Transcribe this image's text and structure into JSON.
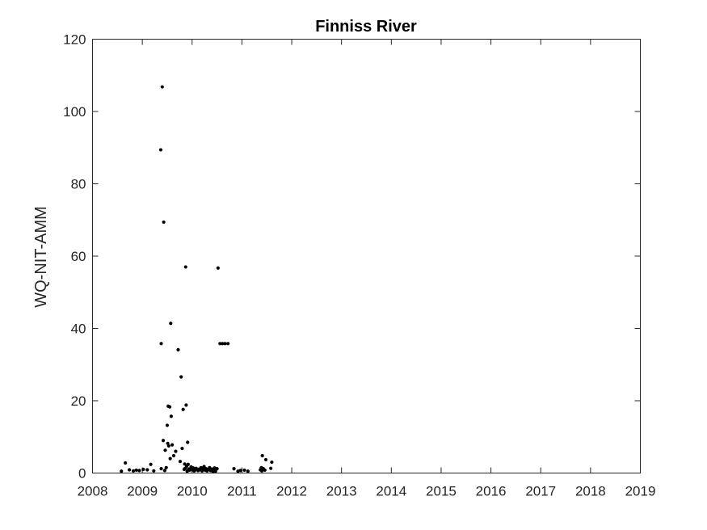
{
  "chart_data": {
    "type": "scatter",
    "title": "Finniss River",
    "xlabel": "",
    "ylabel": "WQ-NIT-AMM",
    "xlim": [
      2008,
      2019
    ],
    "ylim": [
      0,
      120
    ],
    "x_ticks": [
      "2008",
      "2009",
      "2010",
      "2011",
      "2012",
      "2013",
      "2014",
      "2015",
      "2016",
      "2017",
      "2018",
      "2019"
    ],
    "y_ticks": [
      "0",
      "20",
      "40",
      "60",
      "80",
      "100",
      "120"
    ],
    "grid": false,
    "legend": "none",
    "marker_color": "#000000",
    "series": [
      {
        "x": [
          2008.58,
          2008.66,
          2008.74,
          2008.82,
          2008.88,
          2008.94,
          2009.02,
          2009.1,
          2009.17,
          2009.23,
          2009.37,
          2009.38,
          2009.38,
          2009.4,
          2009.42,
          2009.43,
          2009.45,
          2009.46,
          2009.48,
          2009.5,
          2009.51,
          2009.52,
          2009.53,
          2009.55,
          2009.56,
          2009.57,
          2009.58,
          2009.6,
          2009.63,
          2009.67,
          2009.72,
          2009.76,
          2009.78,
          2009.8,
          2009.82,
          2009.84,
          2009.85,
          2009.86,
          2009.87,
          2009.88,
          2009.89,
          2009.9,
          2009.91,
          2009.92,
          2009.93,
          2009.95,
          2009.97,
          2009.98,
          2010.0,
          2010.02,
          2010.04,
          2010.06,
          2010.08,
          2010.1,
          2010.12,
          2010.14,
          2010.16,
          2010.18,
          2010.2,
          2010.22,
          2010.24,
          2010.26,
          2010.28,
          2010.3,
          2010.32,
          2010.35,
          2010.37,
          2010.4,
          2010.42,
          2010.44,
          2010.45,
          2010.46,
          2010.47,
          2010.5,
          2010.52,
          2010.56,
          2010.61,
          2010.66,
          2010.72,
          2010.84,
          2010.92,
          2010.97,
          2011.05,
          2011.12,
          2011.37,
          2011.39,
          2011.4,
          2011.41,
          2011.43,
          2011.46,
          2011.48,
          2011.58,
          2011.6
        ],
        "y": [
          0.5,
          2.8,
          0.9,
          0.6,
          0.8,
          0.7,
          1.0,
          0.9,
          2.4,
          0.6,
          89.4,
          35.8,
          1.2,
          106.8,
          9.0,
          69.4,
          0.7,
          6.3,
          1.5,
          13.2,
          8.2,
          18.5,
          7.5,
          18.3,
          4.0,
          41.4,
          15.7,
          7.8,
          4.8,
          6.0,
          34.1,
          3.2,
          26.6,
          6.8,
          17.6,
          1.0,
          2.5,
          1.3,
          57.0,
          18.8,
          1.9,
          0.5,
          8.5,
          2.4,
          1.1,
          0.8,
          1.2,
          1.7,
          0.9,
          1.4,
          0.6,
          0.8,
          1.3,
          1.0,
          0.7,
          1.1,
          0.9,
          1.5,
          0.6,
          1.0,
          1.8,
          0.8,
          1.2,
          0.6,
          1.0,
          1.5,
          0.7,
          1.1,
          0.4,
          0.9,
          1.4,
          0.7,
          0.5,
          1.2,
          56.7,
          35.8,
          35.8,
          35.8,
          35.8,
          1.2,
          0.5,
          0.7,
          0.8,
          0.5,
          0.9,
          1.5,
          0.6,
          4.8,
          1.2,
          0.8,
          3.7,
          1.3,
          3.0
        ]
      }
    ]
  }
}
